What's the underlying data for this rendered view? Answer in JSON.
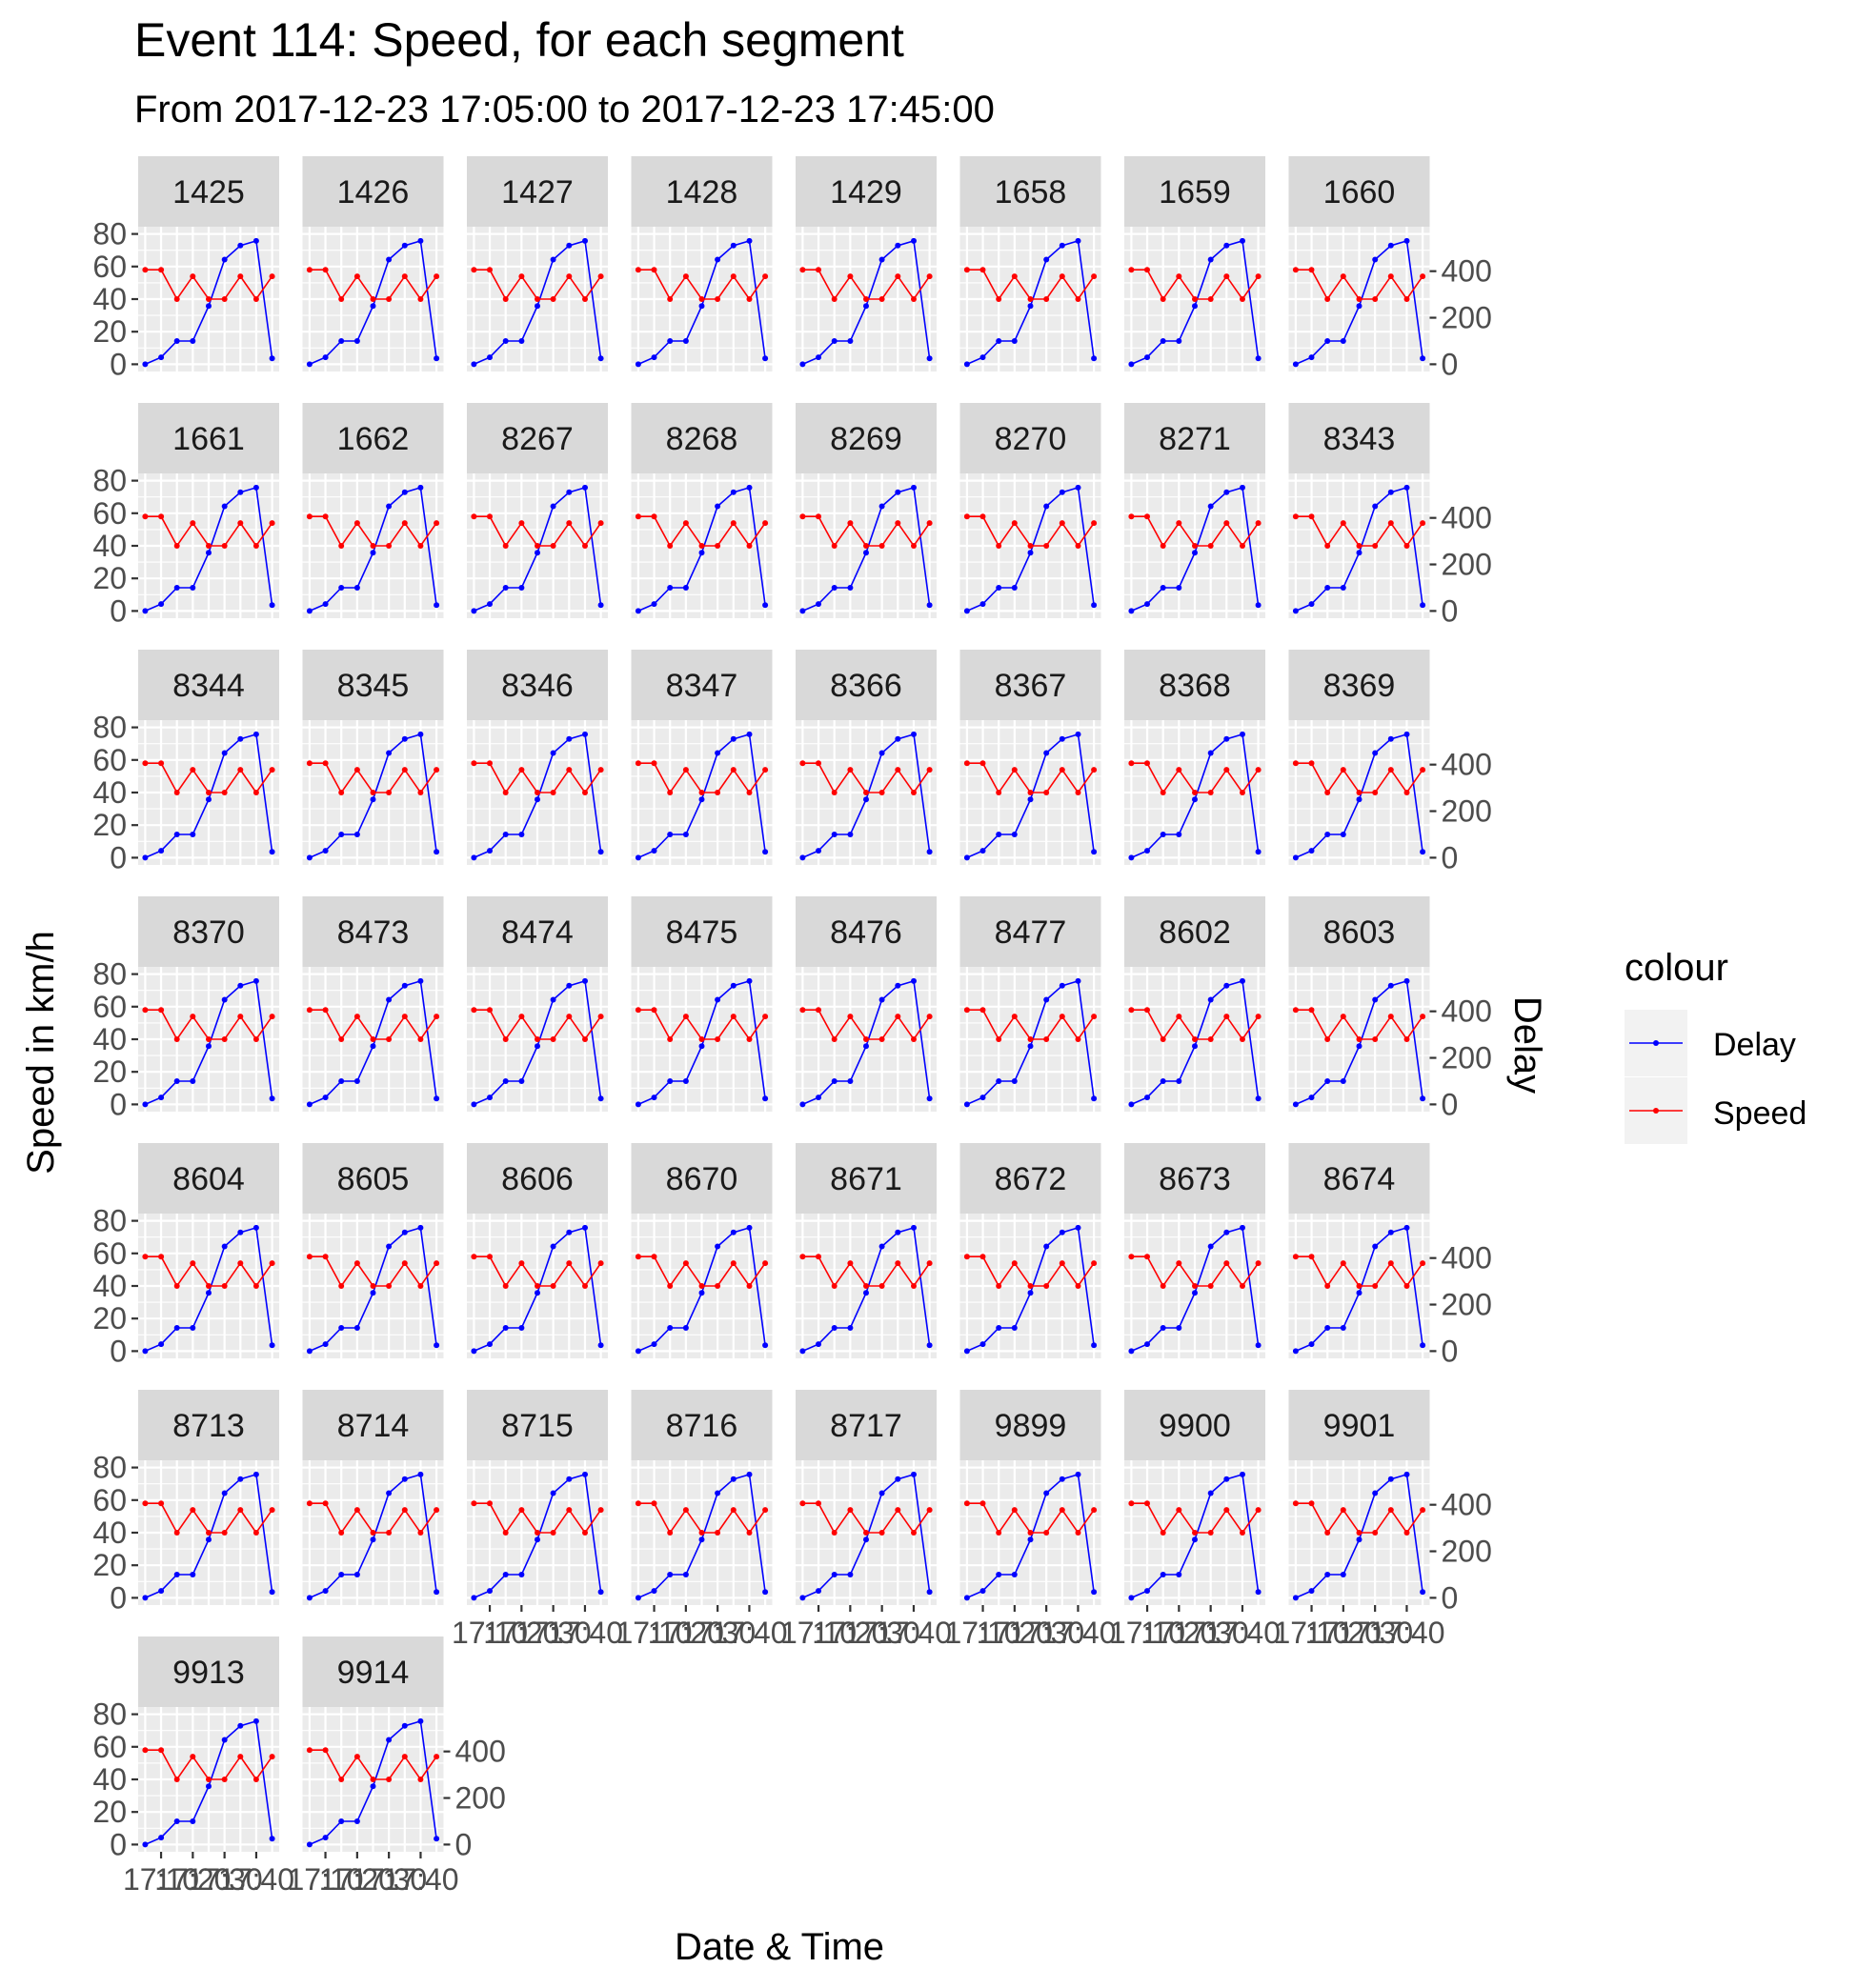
{
  "title": "Event 114: Speed, for each segment",
  "subtitle": "From 2017-12-23 17:05:00 to 2017-12-23 17:45:00",
  "x_title": "Date & Time",
  "y_title": "Speed in km/h",
  "y2_title": "Delay",
  "legend": {
    "title": "colour",
    "items": [
      {
        "label": "Delay",
        "color": "#0000ff"
      },
      {
        "label": "Speed",
        "color": "#ff0000"
      }
    ]
  },
  "chart_data": {
    "type": "line",
    "facets": [
      "1425",
      "1426",
      "1427",
      "1428",
      "1429",
      "1658",
      "1659",
      "1660",
      "1661",
      "1662",
      "8267",
      "8268",
      "8269",
      "8270",
      "8271",
      "8343",
      "8344",
      "8345",
      "8346",
      "8347",
      "8366",
      "8367",
      "8368",
      "8369",
      "8370",
      "8473",
      "8474",
      "8475",
      "8476",
      "8477",
      "8602",
      "8603",
      "8604",
      "8605",
      "8606",
      "8670",
      "8671",
      "8672",
      "8673",
      "8674",
      "8713",
      "8714",
      "8715",
      "8716",
      "8717",
      "9899",
      "9900",
      "9901",
      "9913",
      "9914"
    ],
    "ncol": 8,
    "x": [
      "17:05",
      "17:10",
      "17:15",
      "17:20",
      "17:25",
      "17:30",
      "17:35",
      "17:40",
      "17:45"
    ],
    "x_tick_labels": [
      "17:10",
      "17:20",
      "17:30",
      "17:40"
    ],
    "y_ticks": [
      0,
      20,
      40,
      60,
      80
    ],
    "y_lim": [
      0,
      80
    ],
    "y2_ticks": [
      0,
      200,
      400
    ],
    "y2_lim": [
      0,
      560
    ],
    "series": [
      {
        "name": "Delay",
        "color": "#0000ff",
        "axis": "right",
        "values": [
          0,
          30,
          100,
          100,
          250,
          450,
          510,
          530,
          25
        ]
      },
      {
        "name": "Speed",
        "color": "#ff0000",
        "axis": "left",
        "values": [
          58,
          58,
          40,
          54,
          40,
          40,
          54,
          40,
          54
        ]
      }
    ]
  }
}
